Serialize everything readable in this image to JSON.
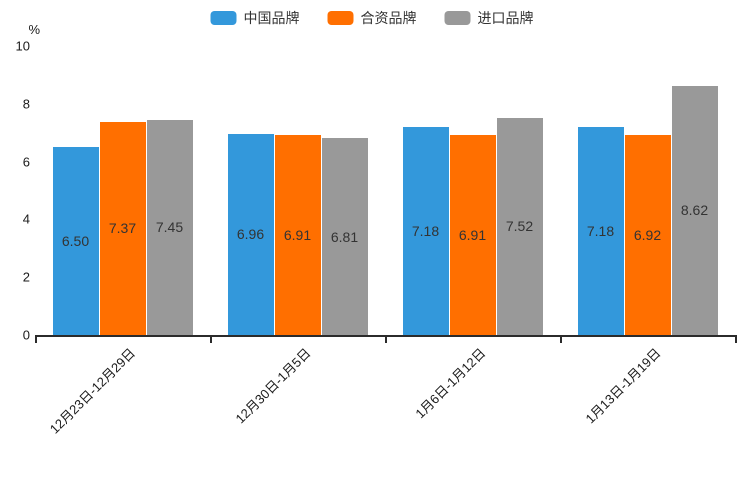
{
  "chart_data": {
    "type": "bar",
    "title": "",
    "ylabel": "%",
    "categories": [
      "12月23日-12月29日",
      "12月30日-1月5日",
      "1月6日-1月12日",
      "1月13日-1月19日"
    ],
    "series": [
      {
        "name": "中国品牌",
        "color": "#3398DB",
        "values": [
          6.5,
          6.96,
          7.18,
          7.18
        ]
      },
      {
        "name": "合资品牌",
        "color": "#FF6F00",
        "values": [
          7.37,
          6.91,
          6.91,
          6.92
        ]
      },
      {
        "name": "进口品牌",
        "color": "#999999",
        "values": [
          7.45,
          6.81,
          7.52,
          8.62
        ]
      }
    ],
    "yticks": [
      0,
      2,
      4,
      6,
      8,
      10
    ],
    "ylim": [
      0,
      10
    ],
    "legend_position": "top-center",
    "grid": false,
    "value_label_position": "inside-center",
    "value_label_decimals": 2,
    "xtick_rotation_deg": 45
  },
  "colors": {
    "axis": "#2b2b2b",
    "bar_label_text": "#333333",
    "tick_label_text": "#1a1a1a",
    "background": "#ffffff"
  }
}
